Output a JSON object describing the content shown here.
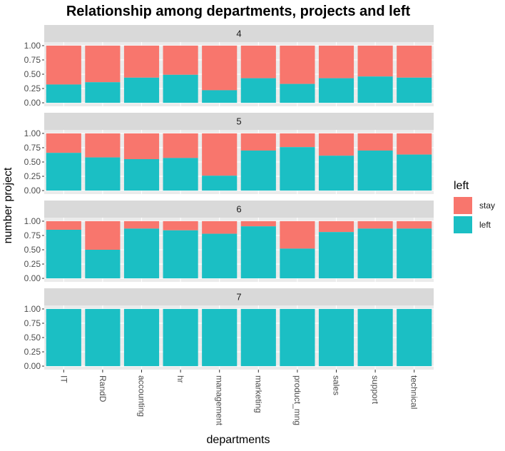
{
  "chart_data": {
    "type": "bar",
    "stacked": true,
    "title": "Relationship among departments, projects and left",
    "xlabel": "departments",
    "ylabel": "number project",
    "ylim": [
      0,
      1
    ],
    "y_ticks": [
      "0.00",
      "0.25",
      "0.50",
      "0.75",
      "1.00"
    ],
    "categories": [
      "IT",
      "RandD",
      "accounting",
      "hr",
      "management",
      "marketing",
      "product_mng",
      "sales",
      "support",
      "technical"
    ],
    "legend": {
      "title": "left",
      "placement": "right",
      "entries": [
        {
          "label": "stay",
          "color": "#F8766D"
        },
        {
          "label": "left",
          "color": "#1BBFC4"
        }
      ]
    },
    "colors": {
      "stay": "#F8766D",
      "left": "#1BBFC4",
      "panel_background": "#EBEBEB",
      "strip_background": "#D9D9D9",
      "grid_major": "#FFFFFF",
      "grid_minor": "#F2F2F2"
    },
    "grid": true,
    "facets": [
      {
        "label": "4",
        "left_share": [
          0.32,
          0.36,
          0.44,
          0.49,
          0.22,
          0.43,
          0.33,
          0.43,
          0.46,
          0.44
        ]
      },
      {
        "label": "5",
        "left_share": [
          0.66,
          0.58,
          0.55,
          0.57,
          0.26,
          0.7,
          0.76,
          0.61,
          0.7,
          0.63
        ]
      },
      {
        "label": "6",
        "left_share": [
          0.85,
          0.5,
          0.87,
          0.84,
          0.78,
          0.91,
          0.52,
          0.81,
          0.87,
          0.87
        ]
      },
      {
        "label": "7",
        "left_share": [
          1.0,
          1.0,
          1.0,
          1.0,
          1.0,
          1.0,
          1.0,
          1.0,
          1.0,
          1.0
        ]
      }
    ]
  }
}
